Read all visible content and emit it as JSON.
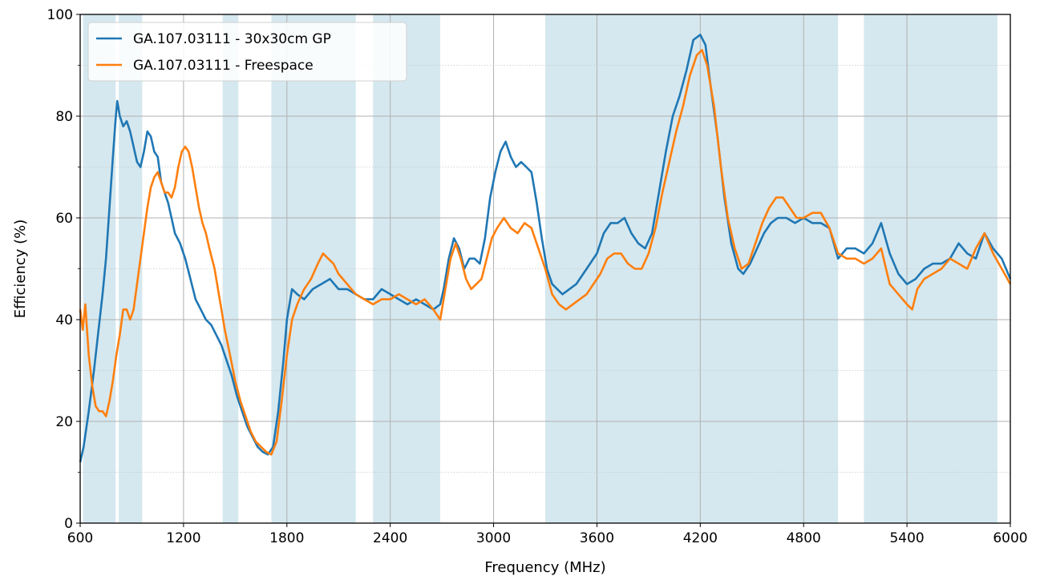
{
  "chart_data": {
    "type": "line",
    "xlabel": "Frequency (MHz)",
    "ylabel": "Efficiency (%)",
    "xlim": [
      600,
      6000
    ],
    "ylim": [
      0,
      100
    ],
    "x_ticks": [
      600,
      1200,
      1800,
      2400,
      3000,
      3600,
      4200,
      4800,
      5400,
      6000
    ],
    "y_ticks": [
      0,
      20,
      40,
      60,
      80,
      100
    ],
    "y_minor_ticks": [
      10,
      30,
      50,
      70,
      90
    ],
    "grid": true,
    "legend_position": "top-left",
    "band_color": "#d5e8ef",
    "bands": [
      [
        617,
        806
      ],
      [
        824,
        960
      ],
      [
        1427,
        1518
      ],
      [
        1710,
        2200
      ],
      [
        2300,
        2690
      ],
      [
        3300,
        5000
      ],
      [
        5150,
        5925
      ]
    ],
    "series": [
      {
        "name": "GA.107.03111 - 30x30cm GP",
        "color": "#1f77b4",
        "points": [
          [
            600,
            12
          ],
          [
            620,
            15
          ],
          [
            650,
            22
          ],
          [
            680,
            30
          ],
          [
            710,
            39
          ],
          [
            730,
            45
          ],
          [
            750,
            52
          ],
          [
            770,
            62
          ],
          [
            790,
            72
          ],
          [
            805,
            79
          ],
          [
            815,
            83
          ],
          [
            830,
            80
          ],
          [
            850,
            78
          ],
          [
            870,
            79
          ],
          [
            890,
            77
          ],
          [
            910,
            74
          ],
          [
            930,
            71
          ],
          [
            950,
            70
          ],
          [
            970,
            73
          ],
          [
            990,
            77
          ],
          [
            1010,
            76
          ],
          [
            1030,
            73
          ],
          [
            1050,
            72
          ],
          [
            1070,
            67
          ],
          [
            1090,
            65
          ],
          [
            1110,
            63
          ],
          [
            1130,
            60
          ],
          [
            1150,
            57
          ],
          [
            1180,
            55
          ],
          [
            1210,
            52
          ],
          [
            1240,
            48
          ],
          [
            1270,
            44
          ],
          [
            1300,
            42
          ],
          [
            1330,
            40
          ],
          [
            1360,
            39
          ],
          [
            1390,
            37
          ],
          [
            1420,
            35
          ],
          [
            1450,
            32
          ],
          [
            1480,
            29
          ],
          [
            1510,
            25
          ],
          [
            1540,
            22
          ],
          [
            1570,
            19
          ],
          [
            1600,
            17
          ],
          [
            1630,
            15
          ],
          [
            1660,
            14
          ],
          [
            1690,
            13.5
          ],
          [
            1720,
            15
          ],
          [
            1750,
            22
          ],
          [
            1780,
            32
          ],
          [
            1800,
            40
          ],
          [
            1830,
            46
          ],
          [
            1860,
            45
          ],
          [
            1900,
            44
          ],
          [
            1950,
            46
          ],
          [
            2000,
            47
          ],
          [
            2050,
            48
          ],
          [
            2100,
            46
          ],
          [
            2150,
            46
          ],
          [
            2200,
            45
          ],
          [
            2250,
            44
          ],
          [
            2300,
            44
          ],
          [
            2350,
            46
          ],
          [
            2400,
            45
          ],
          [
            2450,
            44
          ],
          [
            2500,
            43
          ],
          [
            2550,
            44
          ],
          [
            2600,
            43
          ],
          [
            2650,
            42
          ],
          [
            2690,
            43
          ],
          [
            2710,
            46
          ],
          [
            2740,
            52
          ],
          [
            2770,
            56
          ],
          [
            2800,
            54
          ],
          [
            2830,
            50
          ],
          [
            2860,
            52
          ],
          [
            2890,
            52
          ],
          [
            2920,
            51
          ],
          [
            2950,
            56
          ],
          [
            2980,
            64
          ],
          [
            3010,
            69
          ],
          [
            3040,
            73
          ],
          [
            3070,
            75
          ],
          [
            3100,
            72
          ],
          [
            3130,
            70
          ],
          [
            3160,
            71
          ],
          [
            3190,
            70
          ],
          [
            3220,
            69
          ],
          [
            3250,
            63
          ],
          [
            3280,
            56
          ],
          [
            3310,
            50
          ],
          [
            3340,
            47
          ],
          [
            3370,
            46
          ],
          [
            3400,
            45
          ],
          [
            3440,
            46
          ],
          [
            3480,
            47
          ],
          [
            3520,
            49
          ],
          [
            3560,
            51
          ],
          [
            3600,
            53
          ],
          [
            3640,
            57
          ],
          [
            3680,
            59
          ],
          [
            3720,
            59
          ],
          [
            3760,
            60
          ],
          [
            3800,
            57
          ],
          [
            3840,
            55
          ],
          [
            3880,
            54
          ],
          [
            3920,
            57
          ],
          [
            3960,
            65
          ],
          [
            4000,
            73
          ],
          [
            4040,
            80
          ],
          [
            4080,
            84
          ],
          [
            4120,
            89
          ],
          [
            4160,
            95
          ],
          [
            4200,
            96
          ],
          [
            4230,
            94
          ],
          [
            4260,
            86
          ],
          [
            4300,
            76
          ],
          [
            4340,
            64
          ],
          [
            4380,
            55
          ],
          [
            4420,
            50
          ],
          [
            4450,
            49
          ],
          [
            4490,
            51
          ],
          [
            4530,
            54
          ],
          [
            4570,
            57
          ],
          [
            4610,
            59
          ],
          [
            4650,
            60
          ],
          [
            4700,
            60
          ],
          [
            4750,
            59
          ],
          [
            4800,
            60
          ],
          [
            4850,
            59
          ],
          [
            4900,
            59
          ],
          [
            4950,
            58
          ],
          [
            5000,
            52
          ],
          [
            5050,
            54
          ],
          [
            5100,
            54
          ],
          [
            5150,
            53
          ],
          [
            5200,
            55
          ],
          [
            5250,
            59
          ],
          [
            5300,
            53
          ],
          [
            5350,
            49
          ],
          [
            5400,
            47
          ],
          [
            5450,
            48
          ],
          [
            5500,
            50
          ],
          [
            5550,
            51
          ],
          [
            5600,
            51
          ],
          [
            5650,
            52
          ],
          [
            5700,
            55
          ],
          [
            5750,
            53
          ],
          [
            5800,
            52
          ],
          [
            5850,
            57
          ],
          [
            5900,
            54
          ],
          [
            5950,
            52
          ],
          [
            6000,
            48
          ]
        ]
      },
      {
        "name": "GA.107.03111 - Freespace",
        "color": "#ff7f0e",
        "points": [
          [
            600,
            42
          ],
          [
            615,
            38
          ],
          [
            630,
            43
          ],
          [
            650,
            33
          ],
          [
            670,
            27
          ],
          [
            690,
            23
          ],
          [
            710,
            22
          ],
          [
            730,
            22
          ],
          [
            750,
            21
          ],
          [
            770,
            24
          ],
          [
            790,
            28
          ],
          [
            810,
            33
          ],
          [
            830,
            37
          ],
          [
            850,
            42
          ],
          [
            870,
            42
          ],
          [
            890,
            40
          ],
          [
            910,
            42
          ],
          [
            930,
            47
          ],
          [
            950,
            52
          ],
          [
            970,
            57
          ],
          [
            990,
            62
          ],
          [
            1010,
            66
          ],
          [
            1030,
            68
          ],
          [
            1050,
            69
          ],
          [
            1070,
            67
          ],
          [
            1090,
            65
          ],
          [
            1110,
            65
          ],
          [
            1130,
            64
          ],
          [
            1150,
            66
          ],
          [
            1170,
            70
          ],
          [
            1190,
            73
          ],
          [
            1210,
            74
          ],
          [
            1230,
            73
          ],
          [
            1250,
            70
          ],
          [
            1270,
            66
          ],
          [
            1290,
            62
          ],
          [
            1310,
            59
          ],
          [
            1330,
            57
          ],
          [
            1350,
            54
          ],
          [
            1380,
            50
          ],
          [
            1410,
            44
          ],
          [
            1440,
            38
          ],
          [
            1470,
            33
          ],
          [
            1500,
            28
          ],
          [
            1530,
            24
          ],
          [
            1560,
            21
          ],
          [
            1590,
            18
          ],
          [
            1620,
            16
          ],
          [
            1650,
            15
          ],
          [
            1680,
            14
          ],
          [
            1710,
            13.5
          ],
          [
            1740,
            16
          ],
          [
            1770,
            24
          ],
          [
            1800,
            33
          ],
          [
            1830,
            40
          ],
          [
            1860,
            43
          ],
          [
            1900,
            46
          ],
          [
            1940,
            48
          ],
          [
            1980,
            51
          ],
          [
            2010,
            53
          ],
          [
            2040,
            52
          ],
          [
            2070,
            51
          ],
          [
            2100,
            49
          ],
          [
            2150,
            47
          ],
          [
            2200,
            45
          ],
          [
            2250,
            44
          ],
          [
            2300,
            43
          ],
          [
            2350,
            44
          ],
          [
            2400,
            44
          ],
          [
            2450,
            45
          ],
          [
            2500,
            44
          ],
          [
            2550,
            43
          ],
          [
            2600,
            44
          ],
          [
            2650,
            42
          ],
          [
            2690,
            40
          ],
          [
            2720,
            46
          ],
          [
            2750,
            52
          ],
          [
            2780,
            55
          ],
          [
            2810,
            52
          ],
          [
            2840,
            48
          ],
          [
            2870,
            46
          ],
          [
            2900,
            47
          ],
          [
            2930,
            48
          ],
          [
            2960,
            52
          ],
          [
            2990,
            56
          ],
          [
            3020,
            58
          ],
          [
            3060,
            60
          ],
          [
            3100,
            58
          ],
          [
            3140,
            57
          ],
          [
            3180,
            59
          ],
          [
            3220,
            58
          ],
          [
            3260,
            54
          ],
          [
            3300,
            50
          ],
          [
            3340,
            45
          ],
          [
            3380,
            43
          ],
          [
            3420,
            42
          ],
          [
            3460,
            43
          ],
          [
            3500,
            44
          ],
          [
            3540,
            45
          ],
          [
            3580,
            47
          ],
          [
            3620,
            49
          ],
          [
            3660,
            52
          ],
          [
            3700,
            53
          ],
          [
            3740,
            53
          ],
          [
            3780,
            51
          ],
          [
            3820,
            50
          ],
          [
            3860,
            50
          ],
          [
            3900,
            53
          ],
          [
            3940,
            58
          ],
          [
            3980,
            65
          ],
          [
            4020,
            71
          ],
          [
            4060,
            77
          ],
          [
            4100,
            82
          ],
          [
            4140,
            88
          ],
          [
            4180,
            92
          ],
          [
            4210,
            93
          ],
          [
            4240,
            90
          ],
          [
            4280,
            82
          ],
          [
            4320,
            70
          ],
          [
            4360,
            60
          ],
          [
            4400,
            54
          ],
          [
            4440,
            50
          ],
          [
            4480,
            51
          ],
          [
            4520,
            55
          ],
          [
            4560,
            59
          ],
          [
            4600,
            62
          ],
          [
            4640,
            64
          ],
          [
            4680,
            64
          ],
          [
            4720,
            62
          ],
          [
            4760,
            60
          ],
          [
            4800,
            60
          ],
          [
            4850,
            61
          ],
          [
            4900,
            61
          ],
          [
            4950,
            58
          ],
          [
            5000,
            53
          ],
          [
            5050,
            52
          ],
          [
            5100,
            52
          ],
          [
            5150,
            51
          ],
          [
            5200,
            52
          ],
          [
            5250,
            54
          ],
          [
            5300,
            47
          ],
          [
            5350,
            45
          ],
          [
            5400,
            43
          ],
          [
            5430,
            42
          ],
          [
            5460,
            46
          ],
          [
            5500,
            48
          ],
          [
            5550,
            49
          ],
          [
            5600,
            50
          ],
          [
            5650,
            52
          ],
          [
            5700,
            51
          ],
          [
            5750,
            50
          ],
          [
            5800,
            54
          ],
          [
            5850,
            57
          ],
          [
            5900,
            53
          ],
          [
            5950,
            50
          ],
          [
            6000,
            47
          ]
        ]
      }
    ]
  }
}
